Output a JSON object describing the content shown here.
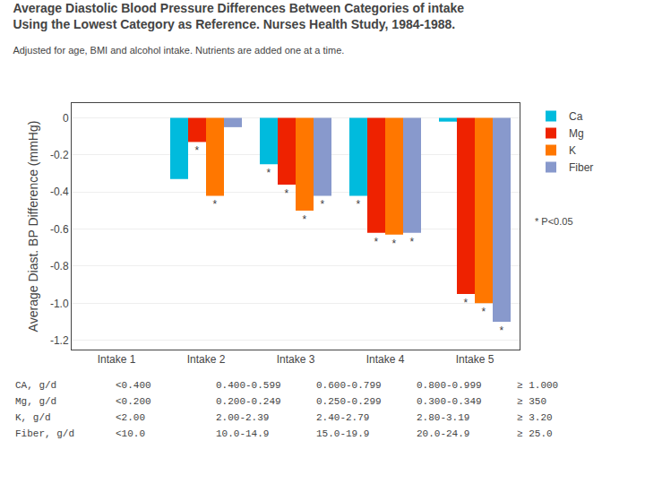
{
  "chart_data": {
    "type": "bar",
    "title": "Average Diastolic Blood Pressure Differences Between Categories of intake\nUsing the Lowest Category as Reference. Nurses Health Study, 1984-1988.",
    "subtitle": "Adjusted for age, BMI and alcohol intake. Nutrients are added one at a time.",
    "ylabel": "Average Diast. BP Difference (mmHg)",
    "categories": [
      "Intake 1",
      "Intake 2",
      "Intake 3",
      "Intake 4",
      "Intake 5"
    ],
    "series": [
      {
        "name": "Ca",
        "color": "#00BBDD",
        "values": [
          0.0,
          -0.33,
          -0.25,
          -0.42,
          -0.02
        ],
        "significant": [
          false,
          false,
          true,
          true,
          false
        ]
      },
      {
        "name": "Mg",
        "color": "#EE2200",
        "values": [
          0.0,
          -0.13,
          -0.36,
          -0.62,
          -0.95
        ],
        "significant": [
          false,
          true,
          true,
          true,
          true
        ]
      },
      {
        "name": "K",
        "color": "#FF7700",
        "values": [
          0.0,
          -0.42,
          -0.5,
          -0.63,
          -1.0
        ],
        "significant": [
          false,
          true,
          true,
          true,
          true
        ]
      },
      {
        "name": "Fiber",
        "color": "#8899CC",
        "values": [
          0.0,
          -0.05,
          -0.42,
          -0.62,
          -1.1
        ],
        "significant": [
          false,
          false,
          true,
          true,
          true
        ]
      }
    ],
    "significance_marker": "*",
    "ylim": [
      -1.25,
      0.08
    ],
    "yticks": [
      0,
      -0.2,
      -0.4,
      -0.6,
      -0.8,
      {
        "value": -1.0,
        "label": "-1.0"
      },
      -1.2
    ],
    "grid": true,
    "legend": "right",
    "annotations": [
      "* P<0.05"
    ],
    "table": [
      [
        "CA, g/d",
        "<0.400",
        "0.400-0.599",
        "0.600-0.799",
        "0.800-0.999",
        "≥ 1.000"
      ],
      [
        "Mg, g/d",
        "<0.200",
        "0.200-0.249",
        "0.250-0.299",
        "0.300-0.349",
        "≥ 350"
      ],
      [
        "K, g/d",
        "<2.00",
        "2.00-2.39",
        "2.40-2.79",
        "2.80-3.19",
        "≥ 3.20"
      ],
      [
        "Fiber, g/d",
        "<10.0",
        "10.0-14.9",
        "15.0-19.9",
        "20.0-24.9",
        "≥ 25.0"
      ]
    ]
  }
}
